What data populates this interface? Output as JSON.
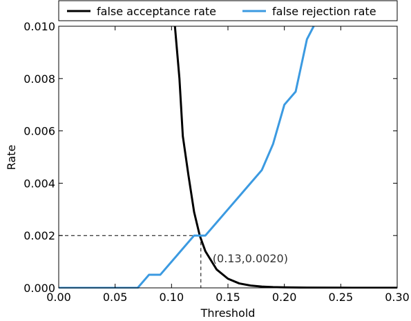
{
  "chart_data": {
    "type": "line",
    "title": "",
    "xlabel": "Threshold",
    "ylabel": "Rate",
    "xlim": [
      0.0,
      0.3
    ],
    "ylim": [
      0.0,
      0.01
    ],
    "x_ticks": [
      "0.00",
      "0.05",
      "0.10",
      "0.15",
      "0.20",
      "0.25",
      "0.30"
    ],
    "y_ticks": [
      "0.000",
      "0.002",
      "0.004",
      "0.006",
      "0.008",
      "0.010"
    ],
    "grid": false,
    "legend_position": "top, outside plot",
    "series": [
      {
        "name": "false acceptance rate",
        "color": "#000000",
        "points": [
          [
            0.103,
            0.01
          ],
          [
            0.107,
            0.008
          ],
          [
            0.11,
            0.0058
          ],
          [
            0.115,
            0.0043
          ],
          [
            0.12,
            0.0029
          ],
          [
            0.125,
            0.002
          ],
          [
            0.13,
            0.0014
          ],
          [
            0.14,
            0.0007
          ],
          [
            0.15,
            0.00035
          ],
          [
            0.16,
            0.00017
          ],
          [
            0.17,
            9e-05
          ],
          [
            0.18,
            5e-05
          ],
          [
            0.19,
            3e-05
          ],
          [
            0.2,
            2e-05
          ],
          [
            0.22,
            1e-05
          ],
          [
            0.25,
            5e-06
          ],
          [
            0.3,
            2e-06
          ]
        ]
      },
      {
        "name": "false rejection rate",
        "color": "#3b9ae1",
        "points": [
          [
            0.0,
            0.0
          ],
          [
            0.07,
            0.0
          ],
          [
            0.08,
            0.0005
          ],
          [
            0.09,
            0.0005
          ],
          [
            0.1,
            0.001
          ],
          [
            0.11,
            0.0015
          ],
          [
            0.12,
            0.002
          ],
          [
            0.13,
            0.002
          ],
          [
            0.14,
            0.0025
          ],
          [
            0.15,
            0.003
          ],
          [
            0.16,
            0.0035
          ],
          [
            0.17,
            0.004
          ],
          [
            0.18,
            0.0045
          ],
          [
            0.19,
            0.0055
          ],
          [
            0.2,
            0.007
          ],
          [
            0.21,
            0.0075
          ],
          [
            0.22,
            0.0095
          ],
          [
            0.226,
            0.01
          ]
        ]
      }
    ],
    "annotation": {
      "text": "(0.13,0.0020)",
      "x": 0.126,
      "y": 0.002
    }
  }
}
